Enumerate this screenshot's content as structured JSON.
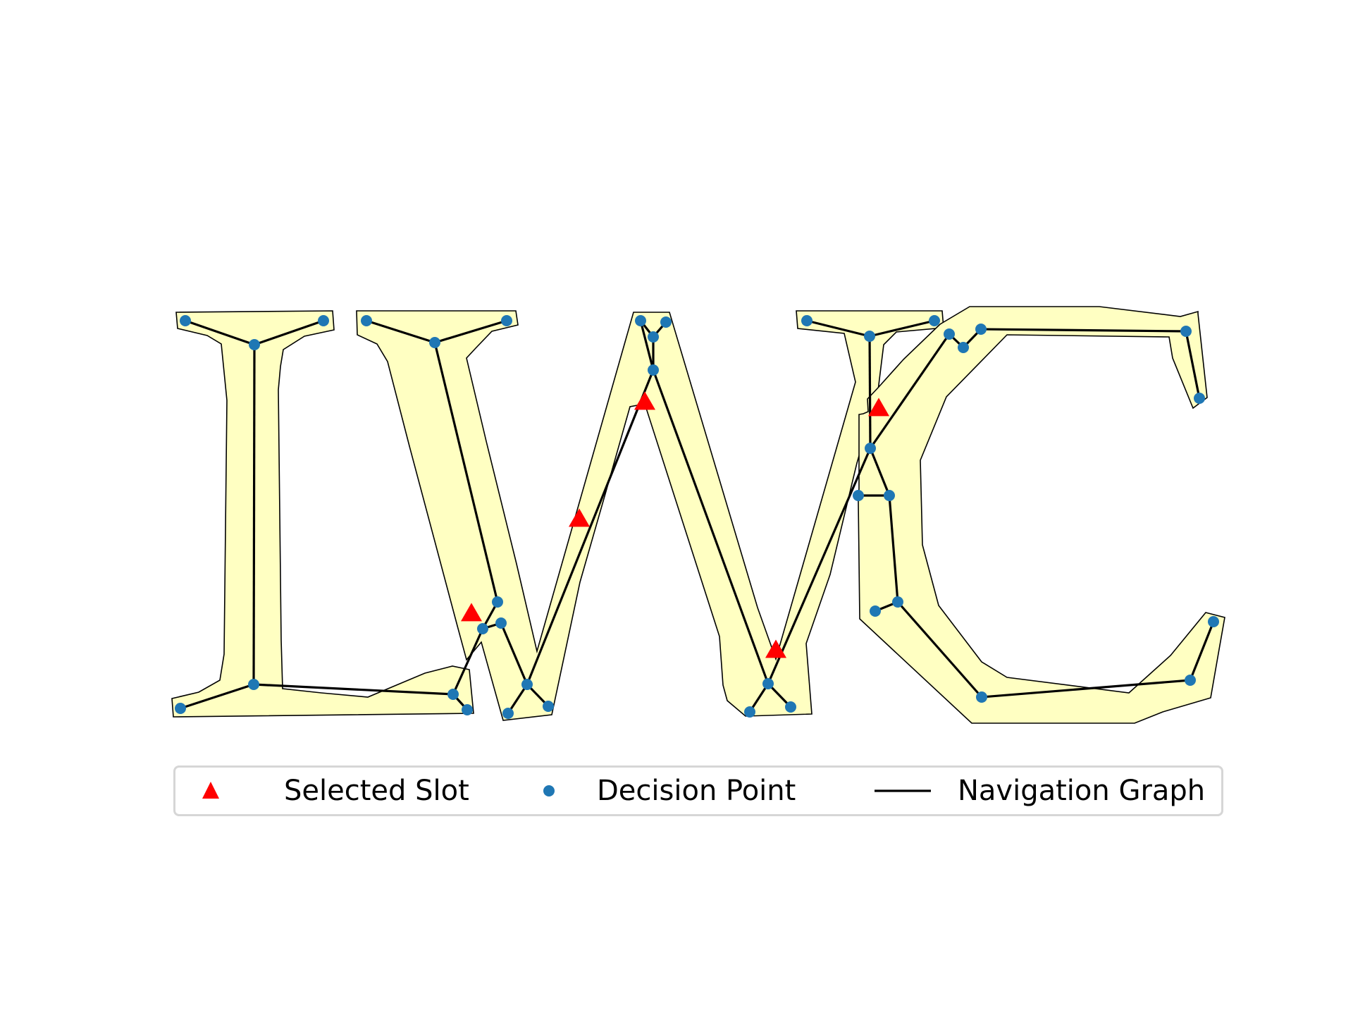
{
  "figure": {
    "letters": [
      "I",
      "W",
      "C"
    ]
  },
  "legend": {
    "items": [
      {
        "label": "Selected Slot",
        "marker": "triangle",
        "color": "#ff0000"
      },
      {
        "label": "Decision Point",
        "marker": "circle",
        "color": "#1f77b4"
      },
      {
        "label": "Navigation Graph",
        "marker": "line",
        "color": "#000000"
      }
    ]
  },
  "colors": {
    "region_fill": "#ffffc2",
    "region_stroke": "#000000",
    "graph_edge": "#000000",
    "decision_point": "#1f77b4",
    "selected_slot": "#ff0000"
  }
}
